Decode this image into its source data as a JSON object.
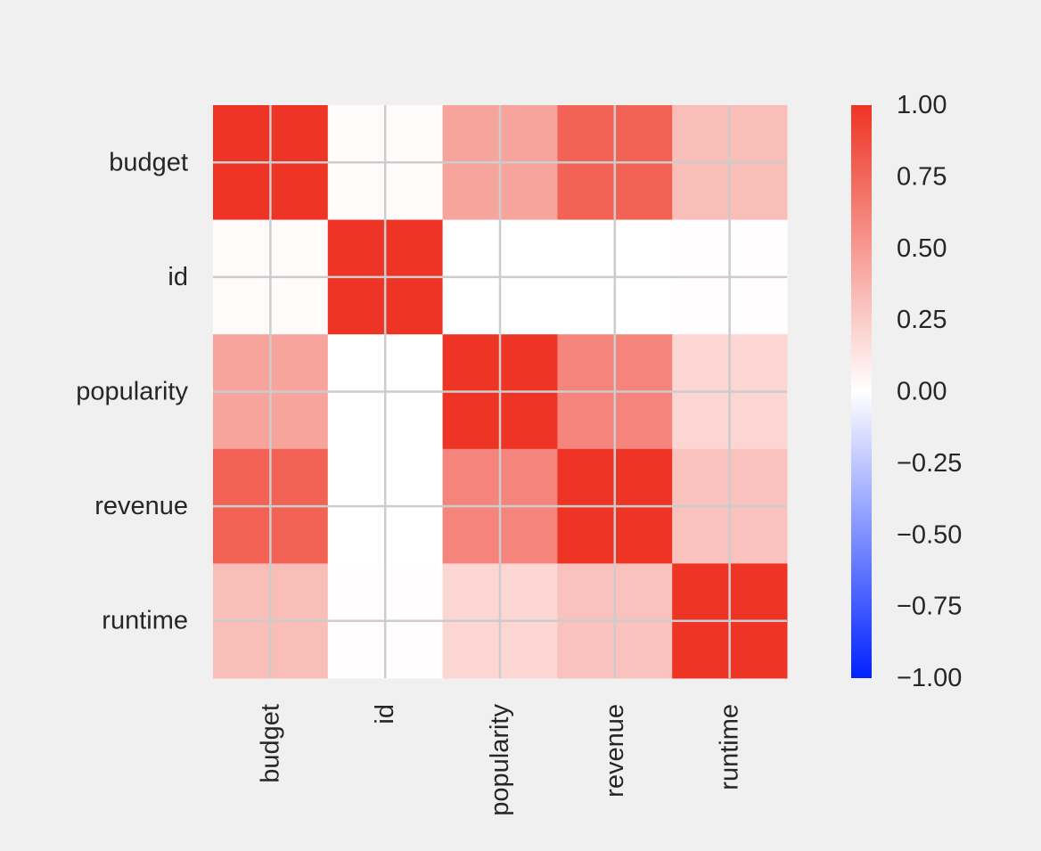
{
  "chart_data": {
    "type": "heatmap",
    "title": "",
    "xlabel": "",
    "ylabel": "",
    "rows": [
      "budget",
      "id",
      "popularity",
      "revenue",
      "runtime"
    ],
    "columns": [
      "budget",
      "id",
      "popularity",
      "revenue",
      "runtime"
    ],
    "values": [
      [
        1.0,
        0.02,
        0.45,
        0.77,
        0.32
      ],
      [
        0.02,
        1.0,
        0.0,
        0.0,
        0.01
      ],
      [
        0.45,
        0.0,
        1.0,
        0.6,
        0.2
      ],
      [
        0.77,
        0.0,
        0.6,
        1.0,
        0.3
      ],
      [
        0.32,
        0.01,
        0.2,
        0.3,
        1.0
      ]
    ],
    "vmin": -1.0,
    "vmax": 1.0,
    "colormap": {
      "low": "#0022ff",
      "mid": "#ffffff",
      "high": "#ee3424"
    },
    "colorbar": {
      "ticks": [
        1.0,
        0.75,
        0.5,
        0.25,
        0.0,
        -0.25,
        -0.5,
        -0.75,
        -1.0
      ],
      "tick_labels": [
        "1.00",
        "0.75",
        "0.50",
        "0.25",
        "0.00",
        "−0.25",
        "−0.50",
        "−0.75",
        "−1.00"
      ]
    },
    "grid": true,
    "grid_color": "#cccccc",
    "background": "#f0f0f0"
  }
}
